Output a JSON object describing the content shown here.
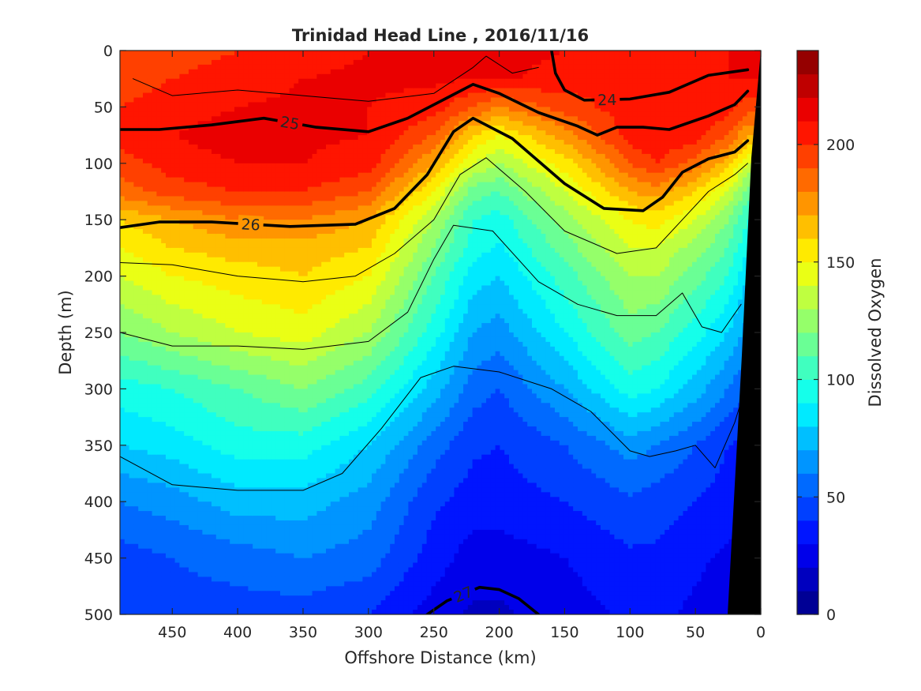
{
  "chart_data": {
    "type": "heatmap",
    "title": "Trinidad Head Line , 2016/11/16",
    "xlabel": "Offshore Distance (km)",
    "ylabel": "Depth (m)",
    "colorbar_label": "Dissolved Oxygen",
    "xlim": [
      490,
      0
    ],
    "ylim": [
      0,
      500
    ],
    "x_reversed": true,
    "y_reversed": true,
    "x_ticks": [
      "450",
      "400",
      "350",
      "300",
      "250",
      "200",
      "150",
      "100",
      "50",
      "0"
    ],
    "y_ticks": [
      "0",
      "50",
      "100",
      "150",
      "200",
      "250",
      "300",
      "350",
      "400",
      "450",
      "500"
    ],
    "colorbar_ticks": [
      "0",
      "50",
      "100",
      "150",
      "200"
    ],
    "colorbar_range": [
      0,
      240
    ],
    "colormap": "jet",
    "bottom_color": "#000000",
    "x_stations_km": [
      490,
      450,
      400,
      350,
      300,
      250,
      220,
      200,
      150,
      100,
      80,
      50,
      25,
      10
    ],
    "depths_m": [
      0,
      25,
      50,
      75,
      100,
      125,
      150,
      175,
      200,
      250,
      300,
      350,
      400,
      450,
      500
    ],
    "oxygen_grid": [
      [
        190,
        195,
        200,
        205,
        210,
        212,
        215,
        215,
        210,
        205,
        205,
        205,
        210,
        215
      ],
      [
        195,
        200,
        205,
        210,
        212,
        212,
        210,
        212,
        205,
        200,
        202,
        205,
        210,
        210
      ],
      [
        200,
        205,
        210,
        212,
        210,
        205,
        190,
        180,
        195,
        205,
        210,
        210,
        205,
        195
      ],
      [
        205,
        210,
        215,
        212,
        210,
        190,
        160,
        150,
        175,
        205,
        210,
        205,
        190,
        170
      ],
      [
        195,
        205,
        210,
        210,
        205,
        170,
        140,
        130,
        155,
        190,
        200,
        185,
        165,
        140
      ],
      [
        185,
        195,
        200,
        200,
        190,
        150,
        115,
        110,
        140,
        170,
        175,
        160,
        140,
        115
      ],
      [
        160,
        170,
        180,
        180,
        170,
        130,
        100,
        95,
        125,
        150,
        155,
        140,
        120,
        100
      ],
      [
        150,
        160,
        165,
        165,
        160,
        120,
        95,
        88,
        115,
        140,
        140,
        125,
        110,
        90
      ],
      [
        140,
        150,
        155,
        160,
        150,
        110,
        85,
        80,
        105,
        130,
        130,
        115,
        100,
        80
      ],
      [
        120,
        130,
        140,
        145,
        130,
        95,
        70,
        65,
        90,
        115,
        110,
        95,
        80,
        65
      ],
      [
        95,
        100,
        110,
        120,
        105,
        75,
        55,
        50,
        70,
        95,
        90,
        75,
        60,
        50
      ],
      [
        80,
        85,
        95,
        95,
        80,
        55,
        42,
        40,
        50,
        65,
        60,
        50,
        40,
        35
      ],
      [
        60,
        65,
        75,
        75,
        65,
        42,
        35,
        35,
        40,
        48,
        45,
        40,
        35,
        30
      ],
      [
        45,
        50,
        55,
        60,
        55,
        35,
        25,
        25,
        30,
        38,
        38,
        32,
        28,
        25
      ],
      [
        40,
        45,
        45,
        45,
        40,
        25,
        18,
        18,
        25,
        32,
        32,
        28,
        25,
        22
      ]
    ],
    "density_contours": [
      {
        "label": "24",
        "emphasized": true,
        "points": [
          [
            160,
            0
          ],
          [
            157,
            20
          ],
          [
            150,
            35
          ],
          [
            135,
            44
          ],
          [
            100,
            43
          ],
          [
            70,
            37
          ],
          [
            40,
            22
          ],
          [
            10,
            17
          ]
        ]
      },
      {
        "label": "25",
        "emphasized": true,
        "points": [
          [
            490,
            70
          ],
          [
            460,
            70
          ],
          [
            420,
            66
          ],
          [
            380,
            60
          ],
          [
            340,
            68
          ],
          [
            300,
            72
          ],
          [
            270,
            60
          ],
          [
            240,
            42
          ],
          [
            220,
            30
          ],
          [
            200,
            38
          ],
          [
            170,
            55
          ],
          [
            140,
            67
          ],
          [
            125,
            75
          ],
          [
            110,
            68
          ],
          [
            90,
            68
          ],
          [
            70,
            70
          ],
          [
            40,
            58
          ],
          [
            20,
            48
          ],
          [
            10,
            36
          ]
        ]
      },
      {
        "label": "26",
        "emphasized": true,
        "points": [
          [
            490,
            157
          ],
          [
            460,
            152
          ],
          [
            420,
            152
          ],
          [
            360,
            156
          ],
          [
            310,
            154
          ],
          [
            280,
            140
          ],
          [
            255,
            110
          ],
          [
            235,
            72
          ],
          [
            220,
            60
          ],
          [
            190,
            78
          ],
          [
            150,
            118
          ],
          [
            120,
            140
          ],
          [
            90,
            142
          ],
          [
            75,
            130
          ],
          [
            60,
            108
          ],
          [
            40,
            96
          ],
          [
            20,
            90
          ],
          [
            10,
            80
          ]
        ]
      },
      {
        "label": "27",
        "emphasized": true,
        "points": [
          [
            255,
            500
          ],
          [
            240,
            488
          ],
          [
            215,
            476
          ],
          [
            200,
            478
          ],
          [
            185,
            486
          ],
          [
            170,
            500
          ]
        ]
      },
      {
        "label": "",
        "emphasized": false,
        "points": [
          [
            490,
            188
          ],
          [
            450,
            190
          ],
          [
            400,
            200
          ],
          [
            350,
            205
          ],
          [
            310,
            200
          ],
          [
            280,
            180
          ],
          [
            250,
            150
          ],
          [
            230,
            110
          ],
          [
            210,
            95
          ],
          [
            180,
            125
          ],
          [
            150,
            160
          ],
          [
            110,
            180
          ],
          [
            80,
            175
          ],
          [
            60,
            150
          ],
          [
            40,
            125
          ],
          [
            20,
            110
          ],
          [
            10,
            100
          ]
        ]
      },
      {
        "label": "",
        "emphasized": false,
        "points": [
          [
            490,
            250
          ],
          [
            450,
            262
          ],
          [
            400,
            262
          ],
          [
            350,
            265
          ],
          [
            300,
            258
          ],
          [
            270,
            232
          ],
          [
            250,
            185
          ],
          [
            235,
            155
          ],
          [
            205,
            160
          ],
          [
            170,
            205
          ],
          [
            140,
            225
          ],
          [
            110,
            235
          ],
          [
            80,
            235
          ],
          [
            60,
            215
          ],
          [
            45,
            245
          ],
          [
            30,
            250
          ],
          [
            15,
            225
          ]
        ]
      },
      {
        "label": "",
        "emphasized": false,
        "points": [
          [
            490,
            360
          ],
          [
            450,
            385
          ],
          [
            400,
            390
          ],
          [
            350,
            390
          ],
          [
            320,
            375
          ],
          [
            290,
            335
          ],
          [
            260,
            290
          ],
          [
            235,
            280
          ],
          [
            200,
            285
          ],
          [
            160,
            300
          ],
          [
            130,
            320
          ],
          [
            100,
            355
          ],
          [
            85,
            360
          ],
          [
            65,
            355
          ],
          [
            50,
            350
          ],
          [
            35,
            370
          ],
          [
            20,
            330
          ],
          [
            12,
            300
          ]
        ]
      },
      {
        "label": "",
        "emphasized": false,
        "points": [
          [
            480,
            25
          ],
          [
            450,
            40
          ],
          [
            400,
            35
          ],
          [
            350,
            40
          ],
          [
            300,
            45
          ],
          [
            250,
            38
          ],
          [
            220,
            15
          ],
          [
            210,
            5
          ],
          [
            190,
            20
          ],
          [
            170,
            15
          ]
        ]
      }
    ]
  }
}
